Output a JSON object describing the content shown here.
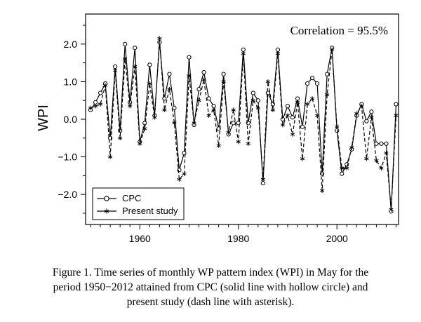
{
  "chart_data": {
    "type": "line",
    "xlabel": "",
    "ylabel": "WPI",
    "xlim": [
      1949,
      2012.5
    ],
    "ylim": [
      -2.8,
      2.8
    ],
    "x_ticks": [
      1960,
      1980,
      2000
    ],
    "y_ticks": [
      2.0,
      1.0,
      0.0,
      -1.0,
      -2.0
    ],
    "y_tick_labels": [
      "2.0",
      "1.0",
      "0.0",
      "−1.0",
      "−2.0"
    ],
    "annotation": "Correlation = 95.5%",
    "legend_position": "bottom-left",
    "x": [
      1950,
      1951,
      1952,
      1953,
      1954,
      1955,
      1956,
      1957,
      1958,
      1959,
      1960,
      1961,
      1962,
      1963,
      1964,
      1965,
      1966,
      1967,
      1968,
      1969,
      1970,
      1971,
      1972,
      1973,
      1974,
      1975,
      1976,
      1977,
      1978,
      1979,
      1980,
      1981,
      1982,
      1983,
      1984,
      1985,
      1986,
      1987,
      1988,
      1989,
      1990,
      1991,
      1992,
      1993,
      1994,
      1995,
      1996,
      1997,
      1998,
      1999,
      2000,
      2001,
      2002,
      2003,
      2004,
      2005,
      2006,
      2007,
      2008,
      2009,
      2010,
      2011,
      2012
    ],
    "series": [
      {
        "name": "CPC",
        "style": "solid",
        "marker": "circle",
        "values": [
          0.25,
          0.45,
          0.7,
          0.95,
          -0.5,
          1.4,
          -0.3,
          2.0,
          0.45,
          1.9,
          -0.6,
          -0.1,
          1.45,
          0.1,
          2.05,
          0.55,
          1.2,
          0.3,
          -1.35,
          -0.9,
          1.65,
          -0.15,
          0.8,
          1.25,
          0.55,
          0.35,
          -0.25,
          1.2,
          -0.4,
          -0.1,
          -0.1,
          1.85,
          -0.1,
          0.7,
          0.5,
          -1.7,
          0.7,
          0.4,
          1.85,
          0.0,
          0.35,
          0.05,
          0.55,
          -0.2,
          0.95,
          1.1,
          0.95,
          -1.45,
          1.2,
          1.9,
          -0.3,
          -1.45,
          -1.2,
          -0.8,
          0.1,
          0.4,
          -0.05,
          0.2,
          -0.65,
          -0.65,
          -0.65,
          -2.45,
          0.4
        ]
      },
      {
        "name": "Present study",
        "style": "dashed",
        "marker": "asterisk",
        "values": [
          0.3,
          0.35,
          0.4,
          0.9,
          -1.0,
          1.3,
          -0.5,
          1.6,
          0.35,
          1.4,
          -0.65,
          -0.25,
          0.95,
          0.05,
          2.15,
          0.25,
          0.8,
          -0.1,
          -1.6,
          -1.45,
          1.15,
          -0.1,
          0.5,
          1.05,
          0.1,
          0.25,
          -0.7,
          1.0,
          -0.35,
          0.25,
          -0.6,
          1.75,
          -0.65,
          0.5,
          0.3,
          -1.6,
          1.0,
          0.25,
          1.75,
          -0.15,
          0.1,
          -0.4,
          0.45,
          -1.05,
          0.4,
          0.55,
          0.1,
          -1.9,
          0.65,
          1.85,
          -0.2,
          -1.3,
          -1.3,
          -0.75,
          0.15,
          0.35,
          -1.05,
          0.05,
          -1.1,
          -1.3,
          -0.9,
          -2.4,
          0.1
        ]
      }
    ]
  },
  "caption": {
    "lines": [
      "Figure 1. Time series of monthly WP pattern index (WPI) in May for the",
      "period 1950−2012 attained from CPC (solid line with hollow circle) and",
      "present study (dash line with asterisk)."
    ]
  }
}
